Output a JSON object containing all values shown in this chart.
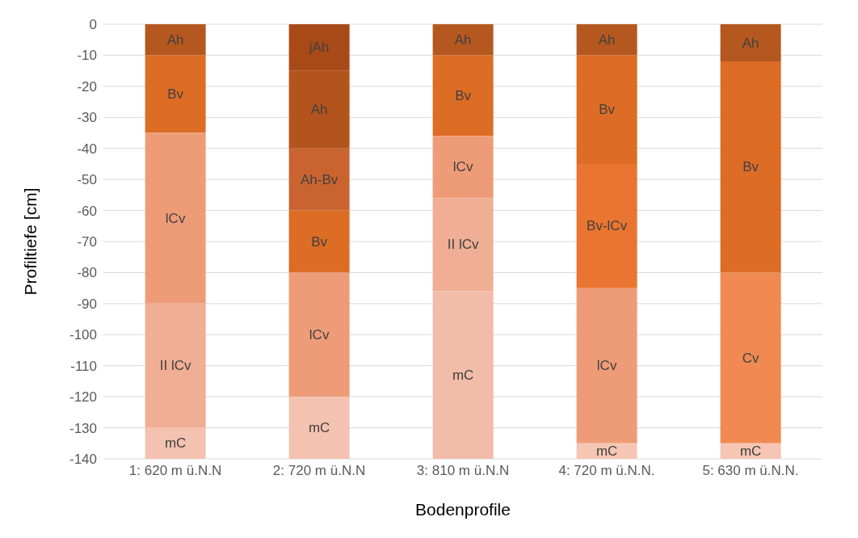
{
  "chart_data": {
    "type": "bar",
    "stacked": true,
    "xlabel": "Bodenprofile",
    "ylabel": "Profiltiefe [cm]",
    "categories": [
      "1: 620 m ü.N.N",
      "2: 720 m ü.N.N",
      "3: 810 m ü.N.N",
      "4: 720 m ü.N.N.",
      "5: 630 m ü.N.N."
    ],
    "series": [
      {
        "values": [
          -10,
          -15,
          -10,
          -10,
          -12
        ],
        "colors": [
          "#b5581f",
          "#a84a18",
          "#b5581f",
          "#b5581f",
          "#b5581f"
        ],
        "value_labels": [
          "Ah",
          "jAh",
          "Ah",
          "Ah",
          "Ah"
        ]
      },
      {
        "values": [
          -25,
          -25,
          -26,
          -35,
          -68
        ],
        "colors": [
          "#dd6c25",
          "#b3541d",
          "#dd6c25",
          "#dd6c25",
          "#dd6c25"
        ],
        "value_labels": [
          "Bv",
          "Ah",
          "Bv",
          "Bv",
          "Bv"
        ]
      },
      {
        "values": [
          -55,
          -20,
          -20,
          -40,
          -55
        ],
        "colors": [
          "#ee9c78",
          "#c96430",
          "#ee9c78",
          "#e97530",
          "#f08a52"
        ],
        "value_labels": [
          "lCv",
          "Ah-Bv",
          "lCv",
          "Bv-lCv",
          "Cv"
        ]
      },
      {
        "values": [
          -40,
          -20,
          -30,
          -50,
          -5
        ],
        "colors": [
          "#f0ae94",
          "#dd6c25",
          "#f0ae94",
          "#ee9c78",
          "#f6c6b4"
        ],
        "value_labels": [
          "II lCv",
          "Bv",
          "II lCv",
          "lCv",
          "mC"
        ]
      },
      {
        "values": [
          -10,
          -40,
          -54,
          -5,
          null
        ],
        "colors": [
          "#f4c2b0",
          "#ee9c78",
          "#f1bca8",
          "#f6c6b4",
          null
        ],
        "value_labels": [
          "mC",
          "lCv",
          "mC",
          "mC",
          null
        ]
      },
      {
        "values": [
          null,
          -20,
          null,
          null,
          null
        ],
        "colors": [
          null,
          "#f4c2b0",
          null,
          null,
          null
        ],
        "value_labels": [
          null,
          "mC",
          null,
          null,
          null
        ]
      }
    ],
    "ylim": [
      -140,
      0
    ],
    "yticks": [
      0,
      -10,
      -20,
      -30,
      -40,
      -50,
      -60,
      -70,
      -80,
      -90,
      -100,
      -110,
      -120,
      -130,
      -140
    ],
    "grid": "y"
  }
}
